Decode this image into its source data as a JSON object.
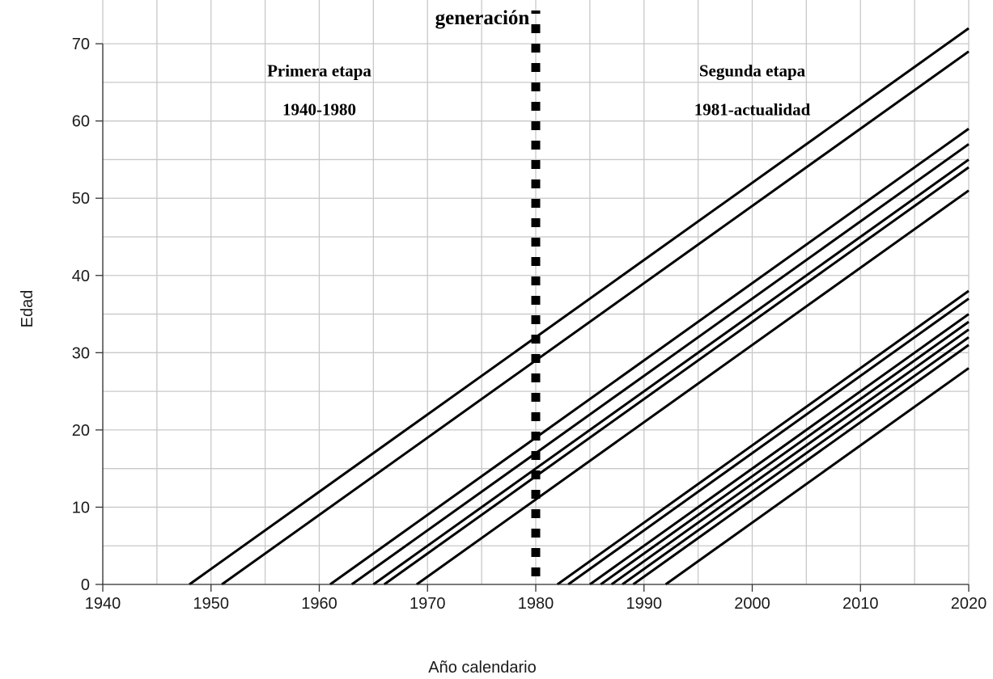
{
  "chart_data": {
    "type": "line",
    "title": "generación",
    "xlabel": "Año calendario",
    "ylabel": "Edad",
    "xlim": [
      1940,
      2020
    ],
    "ylim": [
      0,
      72
    ],
    "x_ticks": [
      1940,
      1950,
      1960,
      1970,
      1980,
      1990,
      2000,
      2010,
      2020
    ],
    "y_ticks": [
      0,
      10,
      20,
      30,
      40,
      50,
      60,
      70
    ],
    "x_minor_grid": [
      1945,
      1955,
      1965,
      1975,
      1985,
      1995,
      2005,
      2015
    ],
    "y_minor_grid": [
      5,
      15,
      25,
      35,
      45,
      55,
      65
    ],
    "grid": true,
    "divider_year": 1980,
    "divider_style": "dotted",
    "annotations": [
      {
        "id": "etapa1-name",
        "text": "Primera etapa",
        "x": 1960,
        "y": 66.5
      },
      {
        "id": "etapa1-range",
        "text": "1940-1980",
        "x": 1960,
        "y": 61.5
      },
      {
        "id": "etapa2-name",
        "text": "Segunda etapa",
        "x": 2000,
        "y": 66.5
      },
      {
        "id": "etapa2-range",
        "text": "1981-actualidad",
        "x": 2000,
        "y": 61.5
      }
    ],
    "series": [
      {
        "x": [
          1948,
          2020
        ],
        "y": [
          0,
          72
        ]
      },
      {
        "x": [
          1951,
          2020
        ],
        "y": [
          0,
          69
        ]
      },
      {
        "x": [
          1961,
          2020
        ],
        "y": [
          0,
          59
        ]
      },
      {
        "x": [
          1963,
          2020
        ],
        "y": [
          0,
          57
        ]
      },
      {
        "x": [
          1965,
          2020
        ],
        "y": [
          0,
          55
        ]
      },
      {
        "x": [
          1966,
          2020
        ],
        "y": [
          0,
          54
        ]
      },
      {
        "x": [
          1969,
          2020
        ],
        "y": [
          0,
          51
        ]
      },
      {
        "x": [
          1982,
          2020
        ],
        "y": [
          0,
          38
        ]
      },
      {
        "x": [
          1983,
          2020
        ],
        "y": [
          0,
          37
        ]
      },
      {
        "x": [
          1985,
          2020
        ],
        "y": [
          0,
          35
        ]
      },
      {
        "x": [
          1986,
          2020
        ],
        "y": [
          0,
          34
        ]
      },
      {
        "x": [
          1987,
          2020
        ],
        "y": [
          0,
          33
        ]
      },
      {
        "x": [
          1988,
          2020
        ],
        "y": [
          0,
          32
        ]
      },
      {
        "x": [
          1989,
          2020
        ],
        "y": [
          0,
          31
        ]
      },
      {
        "x": [
          1992,
          2020
        ],
        "y": [
          0,
          28
        ]
      }
    ]
  }
}
